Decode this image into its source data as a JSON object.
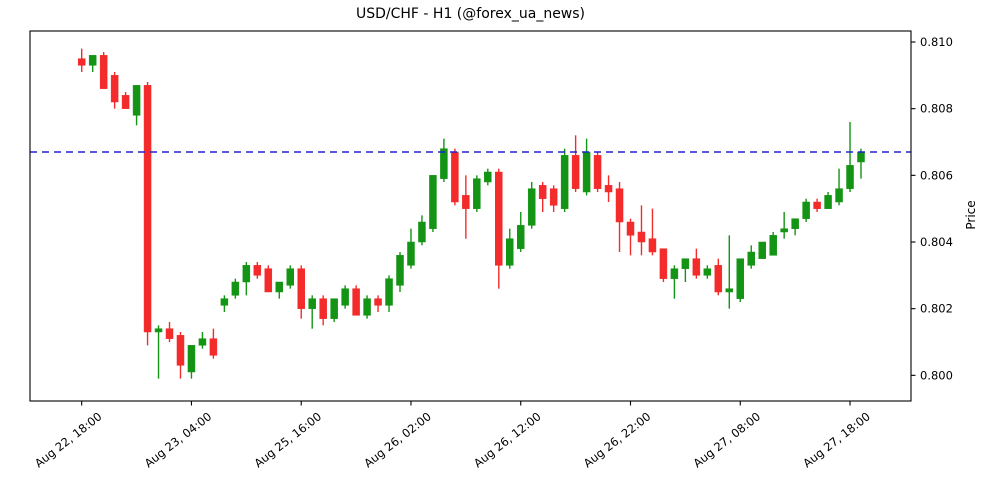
{
  "colors": {
    "up": "#149414",
    "down": "#f42b2b",
    "current_price_line": "#2222cc",
    "axis": "#000000",
    "background": "#ffffff"
  },
  "chart_data": {
    "type": "candlestick",
    "title": "USD/CHF - H1 (@forex_ua_news)",
    "ylabel": "Price",
    "ylim": [
      0.79923,
      0.81033
    ],
    "yticks": [
      0.8,
      0.802,
      0.804,
      0.806,
      0.808,
      0.81
    ],
    "ytick_format_decimals": 3,
    "grid": false,
    "current_price_line": 0.8067,
    "xticks": [
      {
        "index": 0,
        "label": "Aug 22, 18:00"
      },
      {
        "index": 10,
        "label": "Aug 23, 04:00"
      },
      {
        "index": 20,
        "label": "Aug 25, 16:00"
      },
      {
        "index": 30,
        "label": "Aug 26, 02:00"
      },
      {
        "index": 40,
        "label": "Aug 26, 12:00"
      },
      {
        "index": 50,
        "label": "Aug 26, 22:00"
      },
      {
        "index": 60,
        "label": "Aug 27, 08:00"
      },
      {
        "index": 70,
        "label": "Aug 27, 18:00"
      }
    ],
    "ohlc": [
      [
        0.8095,
        0.8098,
        0.8091,
        0.8093
      ],
      [
        0.8093,
        0.8096,
        0.8091,
        0.8096
      ],
      [
        0.8096,
        0.8097,
        0.8086,
        0.8086
      ],
      [
        0.809,
        0.8091,
        0.808,
        0.8082
      ],
      [
        0.8084,
        0.8085,
        0.808,
        0.808
      ],
      [
        0.8078,
        0.8087,
        0.8075,
        0.8087
      ],
      [
        0.8087,
        0.8088,
        0.8009,
        0.8013
      ],
      [
        0.8013,
        0.8015,
        0.7999,
        0.8014
      ],
      [
        0.8014,
        0.8016,
        0.801,
        0.8011
      ],
      [
        0.8012,
        0.8013,
        0.7999,
        0.8003
      ],
      [
        0.8001,
        0.8009,
        0.7999,
        0.8009
      ],
      [
        0.8009,
        0.8013,
        0.8008,
        0.8011
      ],
      [
        0.8011,
        0.8014,
        0.8005,
        0.8006
      ],
      [
        0.8021,
        0.8024,
        0.8019,
        0.8023
      ],
      [
        0.8024,
        0.8029,
        0.8023,
        0.8028
      ],
      [
        0.8028,
        0.8034,
        0.8024,
        0.8033
      ],
      [
        0.8033,
        0.8034,
        0.8029,
        0.803
      ],
      [
        0.8032,
        0.8033,
        0.8025,
        0.8025
      ],
      [
        0.8025,
        0.8028,
        0.8023,
        0.8028
      ],
      [
        0.8027,
        0.8033,
        0.8026,
        0.8032
      ],
      [
        0.8032,
        0.8033,
        0.8017,
        0.802
      ],
      [
        0.802,
        0.8024,
        0.8014,
        0.8023
      ],
      [
        0.8023,
        0.8024,
        0.8015,
        0.8017
      ],
      [
        0.8017,
        0.8023,
        0.8016,
        0.8023
      ],
      [
        0.8021,
        0.8027,
        0.802,
        0.8026
      ],
      [
        0.8026,
        0.8027,
        0.8018,
        0.8018
      ],
      [
        0.8018,
        0.8024,
        0.8017,
        0.8023
      ],
      [
        0.8023,
        0.8024,
        0.8019,
        0.8021
      ],
      [
        0.8021,
        0.803,
        0.8019,
        0.8029
      ],
      [
        0.8027,
        0.8037,
        0.8025,
        0.8036
      ],
      [
        0.8033,
        0.8044,
        0.8032,
        0.804
      ],
      [
        0.804,
        0.8048,
        0.8039,
        0.8046
      ],
      [
        0.8044,
        0.806,
        0.8043,
        0.806
      ],
      [
        0.8059,
        0.8071,
        0.8058,
        0.8068
      ],
      [
        0.8067,
        0.8068,
        0.8051,
        0.8052
      ],
      [
        0.8054,
        0.806,
        0.8041,
        0.805
      ],
      [
        0.805,
        0.806,
        0.8049,
        0.8059
      ],
      [
        0.8058,
        0.8062,
        0.8057,
        0.8061
      ],
      [
        0.8061,
        0.8062,
        0.8026,
        0.8033
      ],
      [
        0.8033,
        0.8044,
        0.8032,
        0.8041
      ],
      [
        0.8038,
        0.8049,
        0.8037,
        0.8045
      ],
      [
        0.8045,
        0.8058,
        0.8044,
        0.8056
      ],
      [
        0.8057,
        0.8058,
        0.8049,
        0.8053
      ],
      [
        0.8056,
        0.8057,
        0.8049,
        0.8051
      ],
      [
        0.805,
        0.8068,
        0.8049,
        0.8066
      ],
      [
        0.8066,
        0.8072,
        0.8055,
        0.8056
      ],
      [
        0.8055,
        0.8071,
        0.8054,
        0.8067
      ],
      [
        0.8066,
        0.8067,
        0.8055,
        0.8056
      ],
      [
        0.8057,
        0.806,
        0.8052,
        0.8055
      ],
      [
        0.8056,
        0.8058,
        0.8037,
        0.8046
      ],
      [
        0.8046,
        0.8047,
        0.8036,
        0.8042
      ],
      [
        0.8043,
        0.8051,
        0.8036,
        0.804
      ],
      [
        0.8041,
        0.805,
        0.8036,
        0.8037
      ],
      [
        0.8038,
        0.8038,
        0.8028,
        0.8029
      ],
      [
        0.8029,
        0.8033,
        0.8023,
        0.8032
      ],
      [
        0.8032,
        0.8035,
        0.8028,
        0.8035
      ],
      [
        0.8035,
        0.8038,
        0.8029,
        0.803
      ],
      [
        0.803,
        0.8033,
        0.8029,
        0.8032
      ],
      [
        0.8033,
        0.8035,
        0.8024,
        0.8025
      ],
      [
        0.8025,
        0.8042,
        0.802,
        0.8026
      ],
      [
        0.8023,
        0.8035,
        0.8022,
        0.8035
      ],
      [
        0.8033,
        0.8039,
        0.8032,
        0.8037
      ],
      [
        0.8035,
        0.804,
        0.8035,
        0.804
      ],
      [
        0.8036,
        0.8043,
        0.8036,
        0.8042
      ],
      [
        0.8043,
        0.8049,
        0.8041,
        0.8044
      ],
      [
        0.8044,
        0.8047,
        0.8042,
        0.8047
      ],
      [
        0.8047,
        0.8053,
        0.8046,
        0.8052
      ],
      [
        0.8052,
        0.8053,
        0.8049,
        0.805
      ],
      [
        0.805,
        0.8055,
        0.805,
        0.8054
      ],
      [
        0.8052,
        0.8062,
        0.8051,
        0.8056
      ],
      [
        0.8056,
        0.8076,
        0.8055,
        0.8063
      ],
      [
        0.8064,
        0.8068,
        0.8059,
        0.8067
      ]
    ]
  }
}
